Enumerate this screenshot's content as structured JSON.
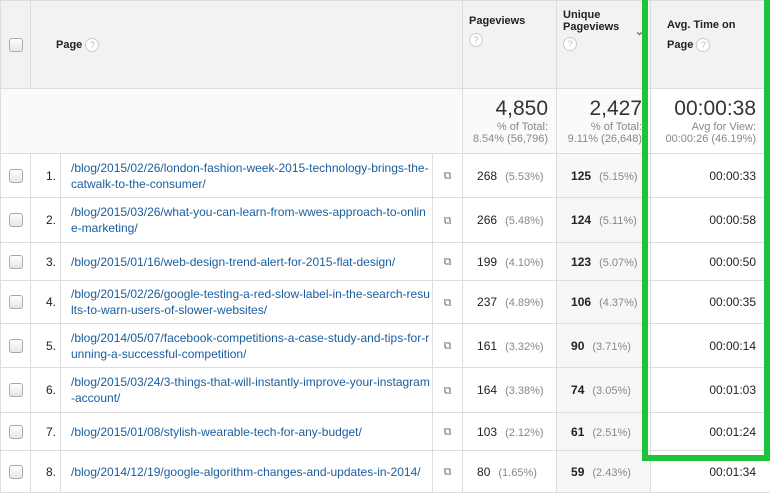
{
  "header": {
    "page": "Page",
    "pageviews": "Pageviews",
    "unique": "Unique Pageviews",
    "avg": "Avg. Time on Page",
    "help": "?"
  },
  "totals": {
    "pageviews": "4,850",
    "pageviews_sub1": "% of Total:",
    "pageviews_sub2": "8.54% (56,796)",
    "unique": "2,427",
    "unique_sub1": "% of Total:",
    "unique_sub2": "9.11% (26,648)",
    "avg": "00:00:38",
    "avg_sub1": "Avg for View:",
    "avg_sub2": "00:00:26 (46.19%)"
  },
  "highlight_color": "#1ec33c",
  "rows": [
    {
      "n": "1.",
      "page": "/blog/2015/02/26/london-fashion-week-2015-technology-brings-the-catwalk-to-the-consumer/",
      "pv": "268",
      "pvp": "(5.53%)",
      "u": "125",
      "up": "(5.15%)",
      "t": "00:00:33"
    },
    {
      "n": "2.",
      "page": "/blog/2015/03/26/what-you-can-learn-from-wwes-approach-to-online-marketing/",
      "pv": "266",
      "pvp": "(5.48%)",
      "u": "124",
      "up": "(5.11%)",
      "t": "00:00:58"
    },
    {
      "n": "3.",
      "page": "/blog/2015/01/16/web-design-trend-alert-for-2015-flat-design/",
      "pv": "199",
      "pvp": "(4.10%)",
      "u": "123",
      "up": "(5.07%)",
      "t": "00:00:50"
    },
    {
      "n": "4.",
      "page": "/blog/2015/02/26/google-testing-a-red-slow-label-in-the-search-results-to-warn-users-of-slower-websites/",
      "pv": "237",
      "pvp": "(4.89%)",
      "u": "106",
      "up": "(4.37%)",
      "t": "00:00:35"
    },
    {
      "n": "5.",
      "page": "/blog/2014/05/07/facebook-competitions-a-case-study-and-tips-for-running-a-successful-competition/",
      "pv": "161",
      "pvp": "(3.32%)",
      "u": "90",
      "up": "(3.71%)",
      "t": "00:00:14"
    },
    {
      "n": "6.",
      "page": "/blog/2015/03/24/3-things-that-will-instantly-improve-your-instagram-account/",
      "pv": "164",
      "pvp": "(3.38%)",
      "u": "74",
      "up": "(3.05%)",
      "t": "00:01:03"
    },
    {
      "n": "7.",
      "page": "/blog/2015/01/08/stylish-wearable-tech-for-any-budget/",
      "pv": "103",
      "pvp": "(2.12%)",
      "u": "61",
      "up": "(2.51%)",
      "t": "00:01:24"
    },
    {
      "n": "8.",
      "page": "/blog/2014/12/19/google-algorithm-changes-and-updates-in-2014/",
      "pv": "80",
      "pvp": "(1.65%)",
      "u": "59",
      "up": "(2.43%)",
      "t": "00:01:34"
    }
  ]
}
